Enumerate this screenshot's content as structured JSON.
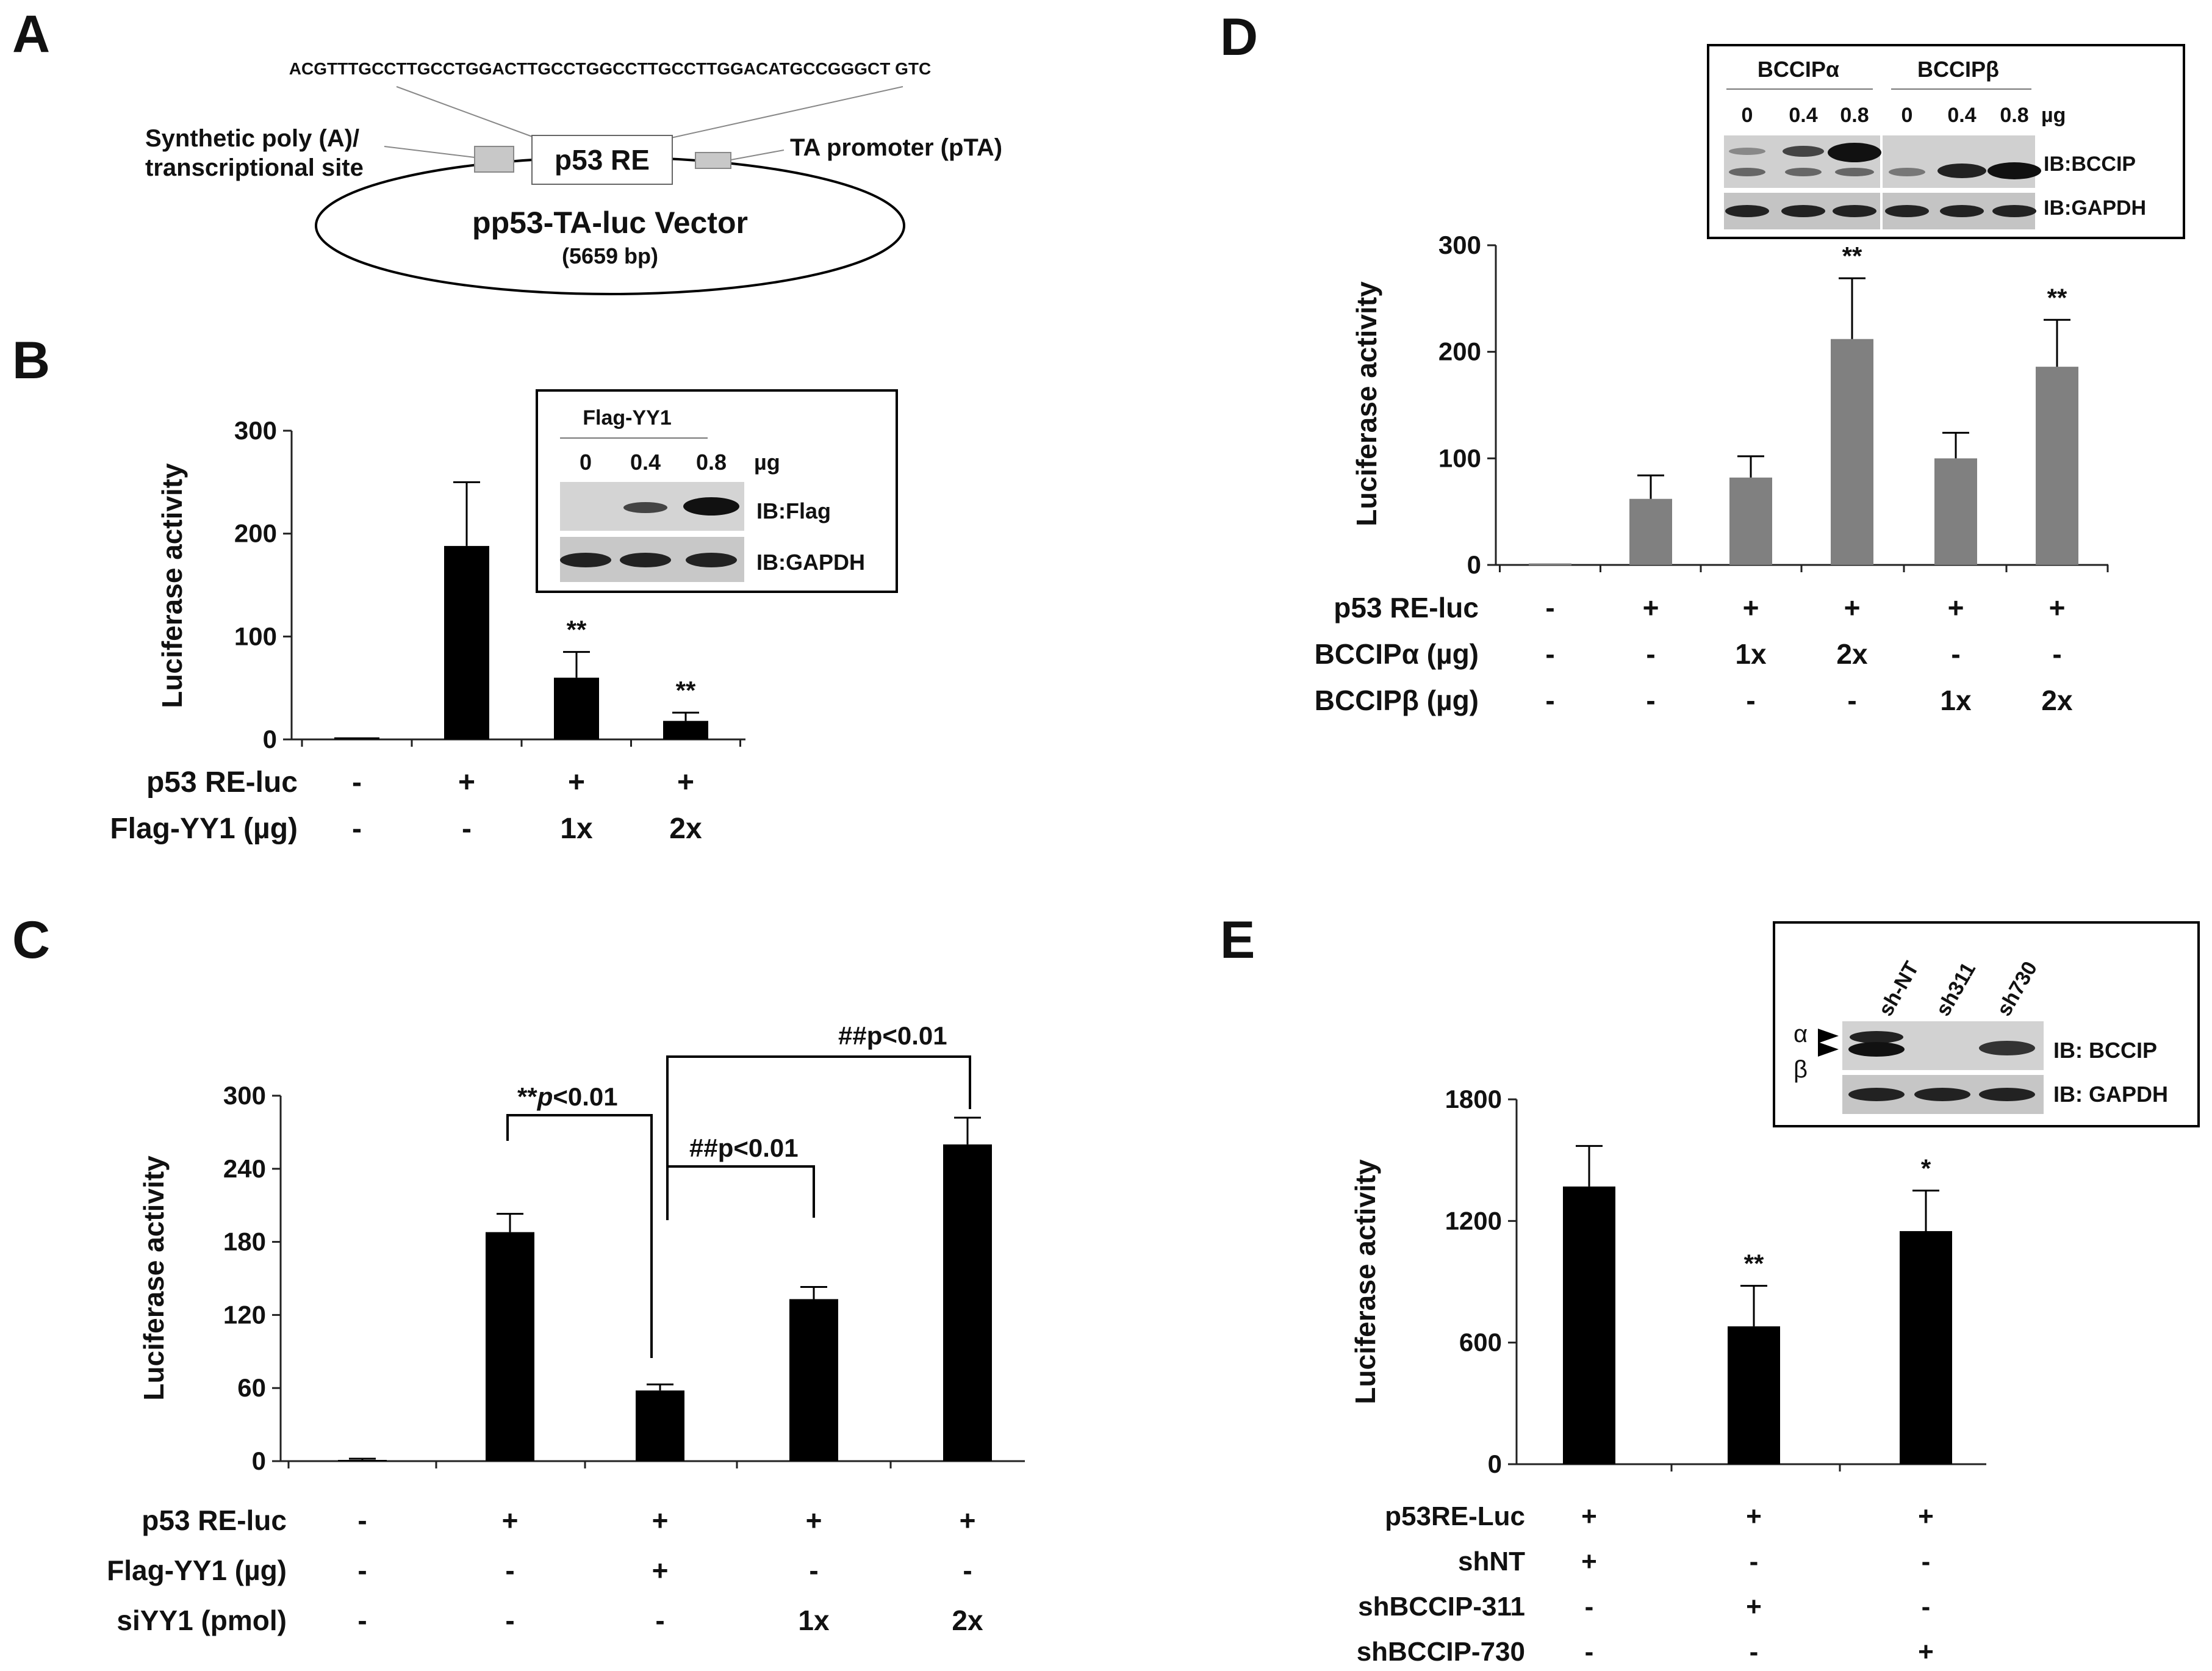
{
  "panel_letters": [
    "A",
    "B",
    "C",
    "D",
    "E"
  ],
  "panelA": {
    "sequence": "ACGTTTGCCTTGCCTGGACTTGCCTGGCCTTGCCTTGGACATGCCGGGCT GTC",
    "box_label": "p53 RE",
    "left_label_1": "Synthetic poly (A)/",
    "left_label_2": "transcriptional site",
    "right_label": "TA promoter (pTA)",
    "vector_name": "pp53-TA-luc Vector",
    "vector_size": "(5659 bp)"
  },
  "panelB": {
    "inset": {
      "title": "Flag-YY1",
      "doses": [
        "0",
        "0.4",
        "0.8"
      ],
      "unit": "µg",
      "blots": [
        "IB:Flag",
        "IB:GAPDH"
      ]
    },
    "rows": [
      {
        "label": "p53 RE-luc",
        "values": [
          "-",
          "+",
          "+",
          "+"
        ]
      },
      {
        "label": "Flag-YY1 (µg)",
        "values": [
          "-",
          "-",
          "1x",
          "2x"
        ]
      }
    ]
  },
  "panelC": {
    "rows": [
      {
        "label": "p53 RE-luc",
        "values": [
          "-",
          "+",
          "+",
          "+",
          "+"
        ]
      },
      {
        "label": "Flag-YY1 (µg)",
        "values": [
          "-",
          "-",
          "+",
          "-",
          "-"
        ]
      },
      {
        "label": "siYY1 (pmol)",
        "values": [
          "-",
          "-",
          "-",
          "1x",
          "2x"
        ]
      }
    ],
    "brackets": [
      {
        "prefix": "**",
        "italic": "p",
        "suffix": "<0.01"
      },
      {
        "prefix": "##",
        "italic": "",
        "suffix": "p<0.01"
      },
      {
        "prefix": "##",
        "italic": "",
        "suffix": "p<0.01"
      }
    ]
  },
  "panelD": {
    "inset": {
      "groups": [
        "BCCIPα",
        "BCCIPβ"
      ],
      "doses": [
        "0",
        "0.4",
        "0.8",
        "0",
        "0.4",
        "0.8"
      ],
      "unit": "µg",
      "blots": [
        "IB:BCCIP",
        "IB:GAPDH"
      ]
    },
    "rows": [
      {
        "label": "p53 RE-luc",
        "values": [
          "-",
          "+",
          "+",
          "+",
          "+",
          "+"
        ]
      },
      {
        "label": "BCCIPα (µg)",
        "values": [
          "-",
          "-",
          "1x",
          "2x",
          "-",
          "-"
        ]
      },
      {
        "label": "BCCIPβ (µg)",
        "values": [
          "-",
          "-",
          "-",
          "-",
          "1x",
          "2x"
        ]
      }
    ]
  },
  "panelE": {
    "inset": {
      "lanes": [
        "sh-NT",
        "sh311",
        "sh730"
      ],
      "markers": [
        "α",
        "β"
      ],
      "blots": [
        "IB: BCCIP",
        "IB: GAPDH"
      ]
    },
    "rows": [
      {
        "label": "p53RE-Luc",
        "values": [
          "+",
          "+",
          "+"
        ]
      },
      {
        "label": "shNT",
        "values": [
          "+",
          "-",
          "-"
        ]
      },
      {
        "label": "shBCCIP-311",
        "values": [
          "-",
          "+",
          "-"
        ]
      },
      {
        "label": "shBCCIP-730",
        "values": [
          "-",
          "-",
          "+"
        ]
      }
    ]
  },
  "chart_data": [
    {
      "id": "B",
      "type": "bar",
      "ylabel": "Luciferase activity",
      "ylim": [
        0,
        300
      ],
      "yticks": [
        0,
        100,
        200,
        300
      ],
      "values": [
        2,
        188,
        60,
        18
      ],
      "errors": [
        0,
        62,
        25,
        8
      ],
      "annotations": [
        "",
        "",
        "**",
        "**"
      ],
      "color": "#000000"
    },
    {
      "id": "C",
      "type": "bar",
      "ylabel": "Luciferase activity",
      "ylim": [
        0,
        300
      ],
      "yticks": [
        0,
        60,
        120,
        180,
        240,
        300
      ],
      "values": [
        1,
        188,
        58,
        133,
        260
      ],
      "errors": [
        1,
        15,
        5,
        10,
        22
      ],
      "annotations": [
        "",
        "",
        "",
        "",
        ""
      ],
      "color": "#000000"
    },
    {
      "id": "D",
      "type": "bar",
      "ylabel": "Luciferase activity",
      "ylim": [
        0,
        300
      ],
      "yticks": [
        0,
        100,
        200,
        300
      ],
      "values": [
        0,
        62,
        82,
        212,
        100,
        186
      ],
      "errors": [
        0,
        22,
        20,
        57,
        24,
        44
      ],
      "annotations": [
        "",
        "",
        "",
        "**",
        "",
        "**"
      ],
      "color": "#808080"
    },
    {
      "id": "E",
      "type": "bar",
      "ylabel": "Luciferase activity",
      "ylim": [
        0,
        1800
      ],
      "yticks": [
        0,
        600,
        1200,
        1800
      ],
      "values": [
        1370,
        680,
        1150
      ],
      "errors": [
        200,
        200,
        200
      ],
      "annotations": [
        "",
        "**",
        "*"
      ],
      "color": "#000000"
    }
  ]
}
